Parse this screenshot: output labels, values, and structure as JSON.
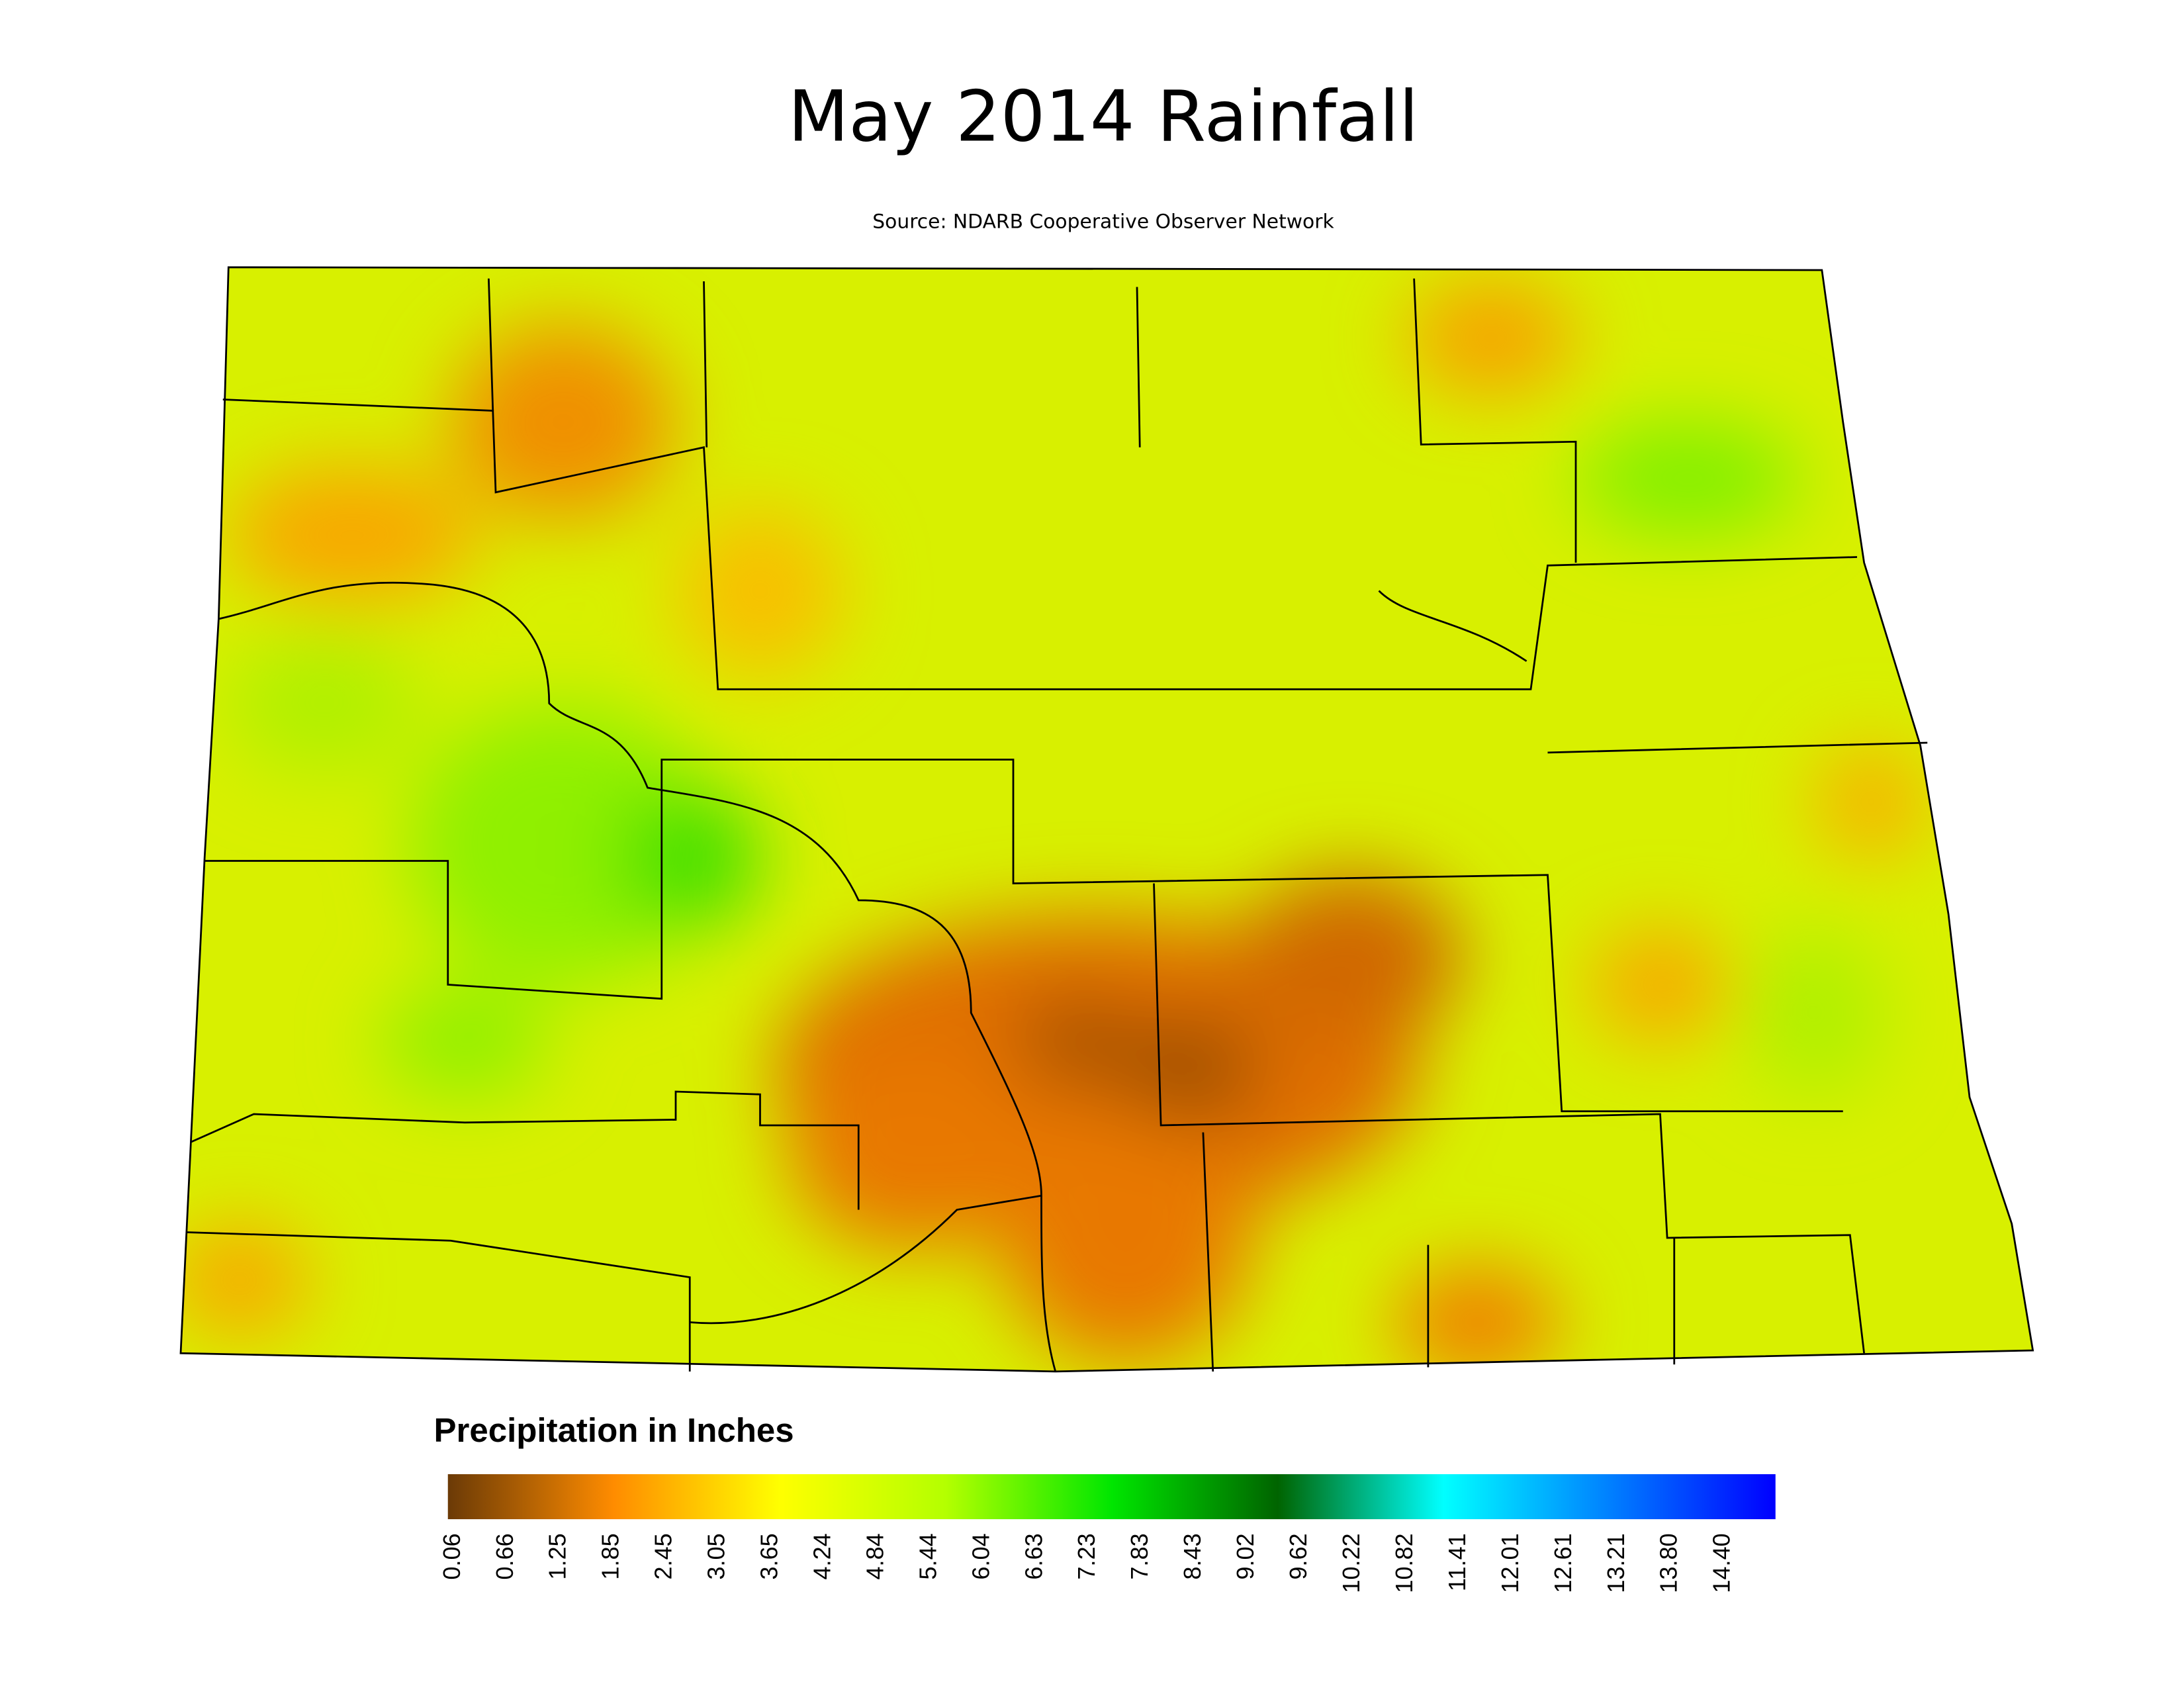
{
  "title": "May 2014 Rainfall",
  "subtitle": "Source: NDARB Cooperative Observer Network",
  "legend": {
    "title": "Precipitation in Inches",
    "ticks": [
      "0.06",
      "0.66",
      "1.25",
      "1.85",
      "2.45",
      "3.05",
      "3.65",
      "4.24",
      "4.84",
      "5.44",
      "6.04",
      "6.63",
      "7.23",
      "7.83",
      "8.43",
      "9.02",
      "9.62",
      "10.22",
      "10.82",
      "11.41",
      "12.01",
      "12.61",
      "13.21",
      "13.80",
      "14.40"
    ],
    "colors": [
      "#6b3a06",
      "#ff8c00",
      "#ffff00",
      "#b4ff00",
      "#00e600",
      "#006400",
      "#00ffff",
      "#0080ff",
      "#0000ff"
    ]
  }
}
